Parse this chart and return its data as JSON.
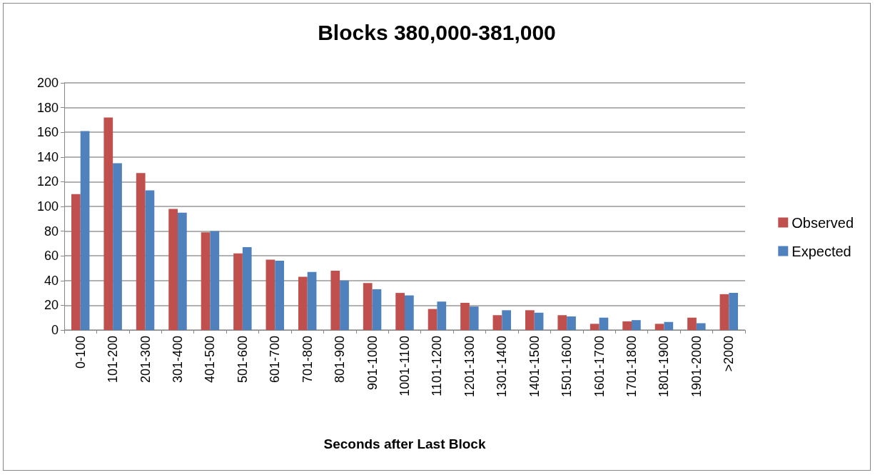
{
  "chart_data": {
    "type": "bar",
    "title": "Blocks 380,000-381,000",
    "xlabel": "Seconds after Last Block",
    "categories": [
      "0-100",
      "101-200",
      "201-300",
      "301-400",
      "401-500",
      "501-600",
      "601-700",
      "701-800",
      "801-900",
      "901-1000",
      "1001-1100",
      "1101-1200",
      "1201-1300",
      "1301-1400",
      "1401-1500",
      "1501-1600",
      "1601-1700",
      "1701-1800",
      "1801-1900",
      "1901-2000",
      ">2000"
    ],
    "series": [
      {
        "name": "Observed",
        "color": "#c0504d",
        "values": [
          110,
          172,
          127,
          98,
          79,
          62,
          57,
          43,
          48,
          38,
          30,
          17,
          22,
          12,
          16,
          12,
          5,
          7,
          5,
          10,
          29
        ]
      },
      {
        "name": "Expected",
        "color": "#4f81bd",
        "values": [
          161,
          135,
          113,
          95,
          80,
          67,
          56,
          47,
          40,
          33,
          28,
          23,
          19,
          16,
          14,
          11,
          10,
          8,
          6.5,
          5.5,
          30
        ]
      }
    ],
    "ylim": [
      0,
      200
    ],
    "yticks": [
      0,
      20,
      40,
      60,
      80,
      100,
      120,
      140,
      160,
      180,
      200
    ],
    "grid": "y",
    "legend": "right"
  }
}
